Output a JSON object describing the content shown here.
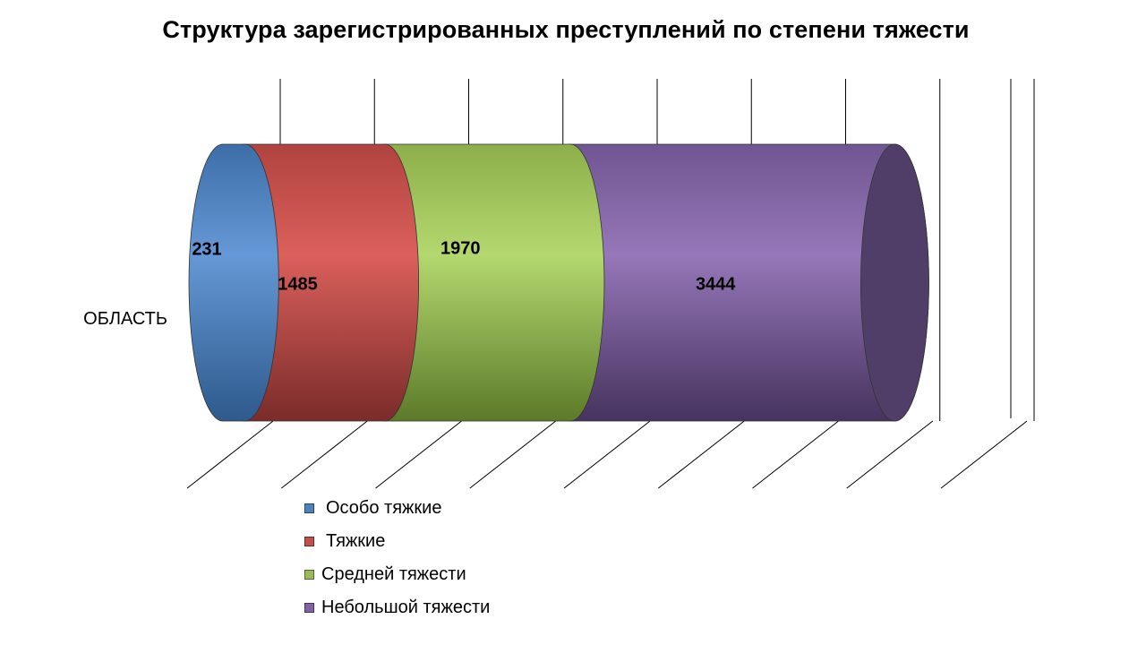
{
  "chart_data": {
    "type": "bar",
    "orientation": "horizontal",
    "stacked": true,
    "style_3d": "cylinder",
    "title": "Структура зарегистрированных преступлений по степени тяжести",
    "categories": [
      "ОБЛАСТЬ"
    ],
    "series": [
      {
        "name": "Особо тяжкие",
        "values": [
          231
        ],
        "color": "#4F81BD"
      },
      {
        "name": "Тяжкие",
        "values": [
          1485
        ],
        "color": "#C0504D"
      },
      {
        "name": "Средней тяжести",
        "values": [
          1970
        ],
        "color": "#9BBB59"
      },
      {
        "name": "Небольшой тяжести",
        "values": [
          3444
        ],
        "color": "#8064A2"
      }
    ],
    "data_labels": [
      "231",
      "1485",
      "1970",
      "3444"
    ],
    "xlim": [
      0,
      8000
    ],
    "grid": true,
    "legend_position": "bottom-left"
  }
}
